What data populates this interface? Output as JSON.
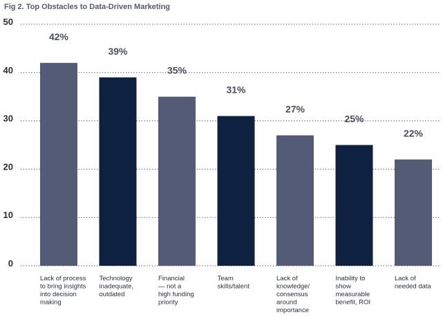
{
  "figure_title": "Fig 2. Top Obstacles to Data-Driven Marketing",
  "chart_data": {
    "type": "bar",
    "title": "Fig 2. Top Obstacles to Data-Driven Marketing",
    "xlabel": "",
    "ylabel": "",
    "ylim": [
      0,
      50
    ],
    "yticks": [
      0,
      10,
      20,
      30,
      40,
      50
    ],
    "grid": true,
    "categories": [
      [
        "Lack of process",
        "to bring insights",
        "into decision",
        "making"
      ],
      [
        "Technology",
        "inadequate,",
        "outdated"
      ],
      [
        "Financial",
        "— not a",
        "high funding",
        "priority"
      ],
      [
        "Team",
        "skills/talent"
      ],
      [
        "Lack of",
        "knowledge/",
        "consensus",
        "around",
        "importance"
      ],
      [
        "Inability to",
        "show",
        "measurable",
        "benefit, ROI"
      ],
      [
        "Lack of",
        "needed data"
      ]
    ],
    "values": [
      42,
      39,
      35,
      31,
      27,
      25,
      22
    ],
    "data_labels": [
      "42%",
      "39%",
      "35%",
      "31%",
      "27%",
      "25%",
      "22%"
    ],
    "bar_colors": [
      "#535b77",
      "#0f2141",
      "#535b77",
      "#0f2141",
      "#535b77",
      "#0f2141",
      "#535b77"
    ]
  }
}
